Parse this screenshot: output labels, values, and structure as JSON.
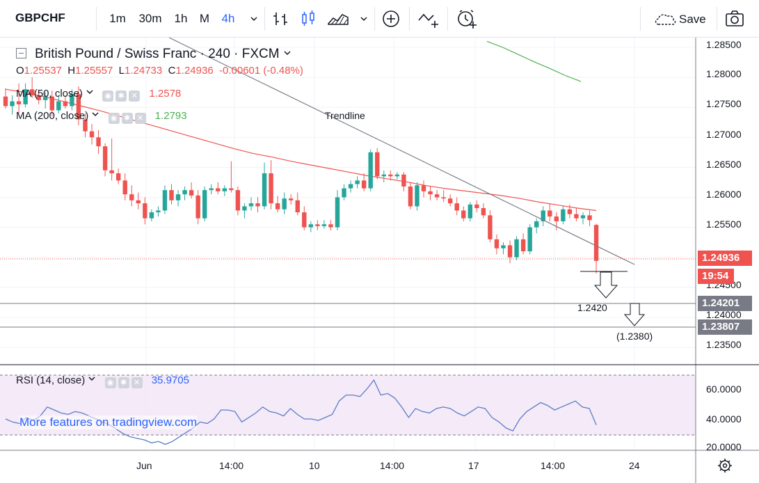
{
  "toolbar": {
    "symbol": "GBPCHF",
    "intervals": [
      "1m",
      "30m",
      "1h",
      "M",
      "4h"
    ],
    "active_interval": "4h",
    "save_label": "Save"
  },
  "legend": {
    "title": "British Pound / Swiss Franc · 240 · FXCM",
    "o_label": "O",
    "o": "1.25537",
    "h_label": "H",
    "h": "1.25557",
    "l_label": "L",
    "l": "1.24733",
    "c_label": "C",
    "c": "1.24936",
    "change": "-0.00601 (-0.48%)",
    "ma50_label": "MA (50, close)",
    "ma50_value": "1.2578",
    "ma200_label": "MA (200, close)",
    "ma200_value": "1.2793",
    "rsi_label": "RSI (14, close)",
    "rsi_value": "35.9705"
  },
  "price_axis": {
    "ticks": [
      "1.28500",
      "1.28000",
      "1.27500",
      "1.27000",
      "1.26500",
      "1.26000",
      "1.25500",
      "1.24500",
      "1.24000",
      "1.23500"
    ],
    "current_price": "1.24936",
    "countdown": "19:54",
    "level1": "1.24201",
    "level2": "1.23807"
  },
  "rsi_axis": {
    "ticks": [
      "60.0000",
      "40.0000",
      "20.0000"
    ]
  },
  "time_axis": {
    "ticks": [
      "Jun",
      "14:00",
      "10",
      "14:00",
      "17",
      "14:00",
      "24"
    ]
  },
  "annotations": {
    "trendline": "Trendline",
    "target1": "1.2420",
    "target2": "(1.2380)"
  },
  "watermark": "More features on tradingview.com",
  "colors": {
    "up": "#26a69a",
    "down": "#ef5350",
    "ma50": "#ef5350",
    "ma200": "#4caf50",
    "rsi": "#5b7dc8",
    "rsi_band": "#f3e5f5",
    "axis_tag": "#787b86",
    "accent": "#2962ff"
  },
  "chart_data": {
    "type": "candlestick",
    "symbol": "GBPCHF",
    "ylim": [
      1.2325,
      1.2875
    ],
    "candles": [
      [
        1.2768,
        1.2782,
        1.2748,
        1.2752
      ],
      [
        1.2752,
        1.277,
        1.2738,
        1.276
      ],
      [
        1.276,
        1.279,
        1.274,
        1.2755
      ],
      [
        1.2755,
        1.279,
        1.275,
        1.278
      ],
      [
        1.278,
        1.28,
        1.2765,
        1.277
      ],
      [
        1.277,
        1.2778,
        1.2755,
        1.2762
      ],
      [
        1.2762,
        1.2775,
        1.2748,
        1.2768
      ],
      [
        1.2768,
        1.2778,
        1.2735,
        1.2745
      ],
      [
        1.2745,
        1.2768,
        1.274,
        1.276
      ],
      [
        1.276,
        1.277,
        1.2748,
        1.2752
      ],
      [
        1.2752,
        1.278,
        1.2745,
        1.2772
      ],
      [
        1.2772,
        1.2785,
        1.272,
        1.273
      ],
      [
        1.273,
        1.274,
        1.27,
        1.271
      ],
      [
        1.271,
        1.2722,
        1.2688,
        1.27
      ],
      [
        1.27,
        1.2712,
        1.2672,
        1.2685
      ],
      [
        1.2685,
        1.269,
        1.2635,
        1.2645
      ],
      [
        1.2645,
        1.2698,
        1.2628,
        1.264
      ],
      [
        1.264,
        1.2648,
        1.2622,
        1.2628
      ],
      [
        1.2628,
        1.264,
        1.2595,
        1.2605
      ],
      [
        1.2605,
        1.262,
        1.2585,
        1.2595
      ],
      [
        1.2595,
        1.2608,
        1.258,
        1.259
      ],
      [
        1.259,
        1.26,
        1.2555,
        1.2565
      ],
      [
        1.2565,
        1.258,
        1.256,
        1.2575
      ],
      [
        1.2575,
        1.2585,
        1.2568,
        1.2578
      ],
      [
        1.2578,
        1.262,
        1.2572,
        1.2612
      ],
      [
        1.2612,
        1.2622,
        1.2588,
        1.2595
      ],
      [
        1.2595,
        1.2612,
        1.2585,
        1.2605
      ],
      [
        1.2605,
        1.2618,
        1.2595,
        1.2612
      ],
      [
        1.2612,
        1.2625,
        1.2598,
        1.2603
      ],
      [
        1.2603,
        1.2612,
        1.2555,
        1.2565
      ],
      [
        1.2565,
        1.2618,
        1.256,
        1.2612
      ],
      [
        1.2612,
        1.2622,
        1.2605,
        1.2615
      ],
      [
        1.2615,
        1.2625,
        1.2605,
        1.261
      ],
      [
        1.261,
        1.262,
        1.2602,
        1.2615
      ],
      [
        1.2615,
        1.266,
        1.2608,
        1.2612
      ],
      [
        1.2612,
        1.2618,
        1.257,
        1.2578
      ],
      [
        1.2578,
        1.259,
        1.2565,
        1.2585
      ],
      [
        1.2585,
        1.26,
        1.2578,
        1.259
      ],
      [
        1.259,
        1.26,
        1.2575,
        1.2585
      ],
      [
        1.2585,
        1.2658,
        1.258,
        1.264
      ],
      [
        1.264,
        1.2662,
        1.258,
        1.259
      ],
      [
        1.259,
        1.2602,
        1.2575,
        1.258
      ],
      [
        1.258,
        1.2608,
        1.2572,
        1.2598
      ],
      [
        1.2598,
        1.2605,
        1.2588,
        1.2595
      ],
      [
        1.2595,
        1.2608,
        1.257,
        1.2575
      ],
      [
        1.2575,
        1.2585,
        1.2545,
        1.255
      ],
      [
        1.255,
        1.256,
        1.2542,
        1.2555
      ],
      [
        1.2555,
        1.2562,
        1.2545,
        1.2552
      ],
      [
        1.2552,
        1.2562,
        1.2548,
        1.2555
      ],
      [
        1.2555,
        1.2562,
        1.2545,
        1.255
      ],
      [
        1.255,
        1.2612,
        1.2545,
        1.26
      ],
      [
        1.26,
        1.2622,
        1.2595,
        1.2615
      ],
      [
        1.2615,
        1.2628,
        1.2608,
        1.2622
      ],
      [
        1.2622,
        1.2635,
        1.2615,
        1.2628
      ],
      [
        1.2628,
        1.264,
        1.261,
        1.2615
      ],
      [
        1.2615,
        1.268,
        1.261,
        1.2675
      ],
      [
        1.2675,
        1.2682,
        1.263,
        1.2635
      ],
      [
        1.2635,
        1.2645,
        1.2625,
        1.2638
      ],
      [
        1.2638,
        1.2645,
        1.2628,
        1.2635
      ],
      [
        1.2635,
        1.2642,
        1.263,
        1.2638
      ],
      [
        1.2638,
        1.2642,
        1.261,
        1.2618
      ],
      [
        1.2618,
        1.2625,
        1.258,
        1.2585
      ],
      [
        1.2585,
        1.2625,
        1.2578,
        1.262
      ],
      [
        1.262,
        1.2628,
        1.26,
        1.261
      ],
      [
        1.261,
        1.2618,
        1.2595,
        1.2605
      ],
      [
        1.2605,
        1.2612,
        1.2595,
        1.26
      ],
      [
        1.26,
        1.2612,
        1.2592,
        1.2598
      ],
      [
        1.2598,
        1.2605,
        1.2585,
        1.259
      ],
      [
        1.259,
        1.26,
        1.257,
        1.2578
      ],
      [
        1.2578,
        1.2585,
        1.256,
        1.2565
      ],
      [
        1.2565,
        1.2592,
        1.256,
        1.2588
      ],
      [
        1.2588,
        1.2595,
        1.2575,
        1.2582
      ],
      [
        1.2582,
        1.259,
        1.2565,
        1.257
      ],
      [
        1.257,
        1.2578,
        1.2525,
        1.253
      ],
      [
        1.253,
        1.2538,
        1.2505,
        1.2515
      ],
      [
        1.2515,
        1.2525,
        1.2505,
        1.252
      ],
      [
        1.252,
        1.2528,
        1.249,
        1.25
      ],
      [
        1.25,
        1.2535,
        1.2495,
        1.253
      ],
      [
        1.253,
        1.254,
        1.2505,
        1.251
      ],
      [
        1.251,
        1.2555,
        1.2505,
        1.255
      ],
      [
        1.255,
        1.2565,
        1.254,
        1.256
      ],
      [
        1.256,
        1.2585,
        1.2552,
        1.2578
      ],
      [
        1.2578,
        1.259,
        1.256,
        1.2568
      ],
      [
        1.2568,
        1.2575,
        1.2545,
        1.256
      ],
      [
        1.256,
        1.2585,
        1.2555,
        1.258
      ],
      [
        1.258,
        1.2588,
        1.2565,
        1.2572
      ],
      [
        1.2572,
        1.2582,
        1.256,
        1.2565
      ],
      [
        1.2565,
        1.2575,
        1.2555,
        1.257
      ],
      [
        1.257,
        1.2578,
        1.2552,
        1.2562
      ],
      [
        1.2554,
        1.2556,
        1.2473,
        1.2494
      ]
    ],
    "ma50": [
      1.278,
      1.2775,
      1.2768,
      1.276,
      1.2752,
      1.2744,
      1.2735,
      1.2726,
      1.2717,
      1.2708,
      1.2699,
      1.269,
      1.2681,
      1.2673,
      1.2667,
      1.266,
      1.2654,
      1.2648,
      1.2642,
      1.2636,
      1.2631,
      1.2626,
      1.262,
      1.2615,
      1.2611,
      1.2607,
      1.2603,
      1.2598,
      1.2592,
      1.2587,
      1.2582,
      1.2578
    ],
    "ma200": [
      1.286,
      1.285,
      1.2838,
      1.2826,
      1.2815,
      1.2803,
      1.2793
    ],
    "rsi": [
      40,
      38,
      37,
      41,
      39,
      42,
      48,
      46,
      44,
      43,
      45,
      44,
      42,
      40,
      38,
      36,
      33,
      30,
      28,
      27,
      26,
      24,
      25,
      23,
      25,
      28,
      31,
      34,
      38,
      37,
      40,
      46,
      46,
      45,
      38,
      41,
      44,
      48,
      45,
      44,
      42,
      47,
      43,
      40,
      40,
      39,
      41,
      43,
      52,
      56,
      56,
      55,
      60,
      66,
      56,
      57,
      54,
      48,
      41,
      47,
      45,
      44,
      47,
      48,
      47,
      44,
      42,
      45,
      48,
      47,
      41,
      38,
      34,
      32,
      40,
      45,
      48,
      51,
      49,
      46,
      48,
      50,
      52,
      48,
      47,
      36
    ]
  }
}
